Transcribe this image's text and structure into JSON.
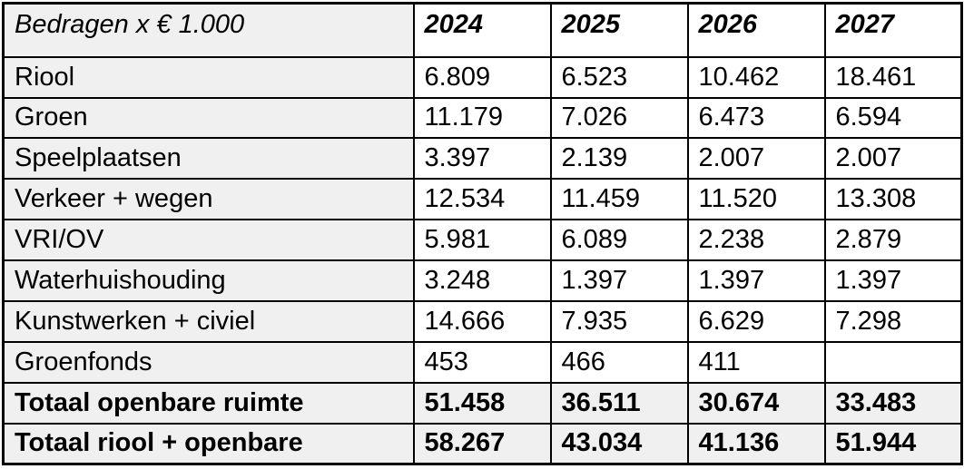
{
  "table": {
    "unit_label": "Bedragen x € 1.000",
    "columns": [
      "2024",
      "2025",
      "2026",
      "2027"
    ],
    "rows": [
      {
        "label": "Riool",
        "values": [
          "6.809",
          "6.523",
          "10.462",
          "18.461"
        ],
        "total": false
      },
      {
        "label": "Groen",
        "values": [
          "11.179",
          "7.026",
          "6.473",
          "6.594"
        ],
        "total": false
      },
      {
        "label": "Speelplaatsen",
        "values": [
          "3.397",
          "2.139",
          "2.007",
          "2.007"
        ],
        "total": false
      },
      {
        "label": "Verkeer + wegen",
        "values": [
          "12.534",
          "11.459",
          "11.520",
          "13.308"
        ],
        "total": false
      },
      {
        "label": "VRI/OV",
        "values": [
          "5.981",
          "6.089",
          "2.238",
          "2.879"
        ],
        "total": false
      },
      {
        "label": "Waterhuishouding",
        "values": [
          "3.248",
          "1.397",
          "1.397",
          "1.397"
        ],
        "total": false
      },
      {
        "label": "Kunstwerken + civiel",
        "values": [
          "14.666",
          "7.935",
          "6.629",
          "7.298"
        ],
        "total": false
      },
      {
        "label": "Groenfonds",
        "values": [
          "453",
          "466",
          "411",
          ""
        ],
        "total": false
      },
      {
        "label": "Totaal openbare ruimte",
        "values": [
          "51.458",
          "36.511",
          "30.674",
          "33.483"
        ],
        "total": true
      },
      {
        "label": "Totaal riool + openbare",
        "values": [
          "58.267",
          "43.034",
          "41.136",
          "51.944"
        ],
        "total": true
      }
    ],
    "colors": {
      "shade": "#f0f0f0",
      "cell_background": "#ffffff",
      "border": "#000000"
    }
  }
}
